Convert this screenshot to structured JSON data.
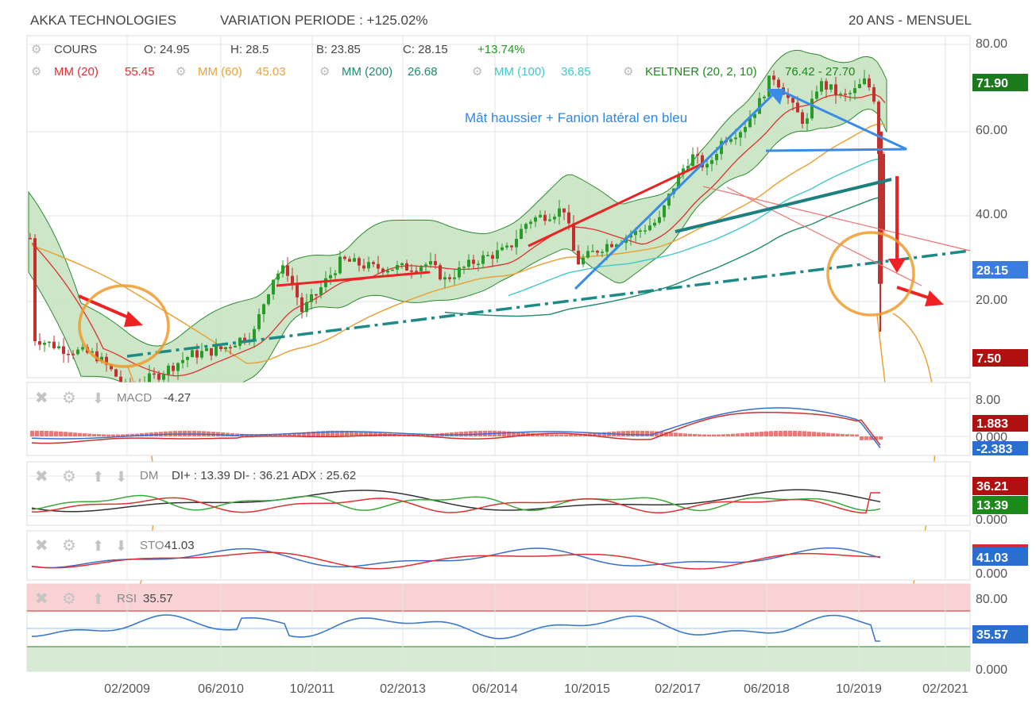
{
  "header": {
    "title": "AKKA TECHNOLOGIES",
    "variation": "VARIATION PERIODE : +125.02%",
    "period": "20 ANS - MENSUEL"
  },
  "legend": {
    "cours_label": "COURS",
    "open": "O: 24.95",
    "high": "H: 28.5",
    "low": "B: 23.85",
    "close": "C: 28.15",
    "change": "+13.74%",
    "mm20_label": "MM (20)",
    "mm20_value": "55.45",
    "mm60_label": "MM (60)",
    "mm60_value": "45.03",
    "mm200_label": "MM (200)",
    "mm200_value": "26.68",
    "mm100_label": "MM (100)",
    "mm100_value": "36.85",
    "keltner_label": "KELTNER (20, 2, 10)",
    "keltner_value": "76.42 - 27.70"
  },
  "annotation": "Mât haussier + Fanion latéral en bleu",
  "price_axis": {
    "ticks": [
      "80.00",
      "60.00",
      "40.00",
      "20.00"
    ],
    "badges": [
      {
        "label": "71.90",
        "color": "#1b7a1b"
      },
      {
        "label": "28.15",
        "color": "#3b7ddd"
      },
      {
        "label": "7.50",
        "color": "#b01010"
      }
    ]
  },
  "panels": {
    "macd": {
      "label": "MACD",
      "value": "-4.27",
      "axis_top": "8.00",
      "axis_zero": "0.000",
      "badge_pos": "1.883",
      "badge_neg": "-2.383"
    },
    "dmi": {
      "label": "DM",
      "value": "DI+ : 13.39 DI- : 36.21 ADX : 25.62",
      "axis_top": "50.00",
      "axis_zero": "0.000",
      "badge_red": "36.21",
      "badge_green": "13.39"
    },
    "sto": {
      "label": "STO",
      "value": "41.03",
      "axis_zero": "0.000",
      "badge": "41.03"
    },
    "rsi": {
      "label": "RSI",
      "value": "35.57",
      "axis_top": "80.00",
      "axis_zero": "0.000",
      "badge": "35.57"
    }
  },
  "x_axis": [
    "02/2009",
    "06/2010",
    "10/2011",
    "02/2013",
    "06/2014",
    "10/2015",
    "02/2017",
    "06/2018",
    "10/2019",
    "02/2021"
  ],
  "chart_data": {
    "type": "line",
    "title": "AKKA TECHNOLOGIES",
    "subtitle": "20 ANS - MENSUEL",
    "x": [
      "02/2009",
      "06/2010",
      "10/2011",
      "02/2013",
      "06/2014",
      "10/2015",
      "02/2017",
      "06/2018",
      "10/2019",
      "02/2021"
    ],
    "ylim": [
      0,
      85
    ],
    "log_scale": true,
    "grid": true,
    "series": [
      {
        "name": "COURS",
        "values": [
          12.5,
          14.5,
          20,
          22.5,
          28,
          30,
          38,
          60,
          45,
          28.15
        ]
      },
      {
        "name": "MM (20)",
        "values": [
          12.8,
          13.5,
          17,
          21,
          24.5,
          28,
          32,
          50,
          54,
          55.45
        ]
      },
      {
        "name": "MM (60)",
        "values": [
          13.5,
          14,
          15,
          16.5,
          19,
          22,
          26,
          35,
          42,
          45.03
        ]
      },
      {
        "name": "MM (200)",
        "values": [
          null,
          null,
          null,
          null,
          null,
          null,
          null,
          24,
          25.5,
          26.68
        ]
      },
      {
        "name": "MM (100)",
        "values": [
          null,
          null,
          null,
          null,
          null,
          null,
          25,
          30,
          35,
          36.85
        ]
      }
    ],
    "keltner": {
      "upper": 76.42,
      "lower": 27.7
    }
  },
  "colors": {
    "price_up": "#2a9a2a",
    "price_down": "#c23030",
    "mm20": "#e03030",
    "mm60": "#e8a33a",
    "mm200": "#1f8a6e",
    "mm100": "#40c8cc",
    "keltner": "#2d8a2d",
    "keltner_fill": "#c7e3c1",
    "annotation": "#2f86e8",
    "macd": "#3a6fc8",
    "signal": "#d03030",
    "orange": "#ef9a2a",
    "grid": "#e4e4e4"
  }
}
